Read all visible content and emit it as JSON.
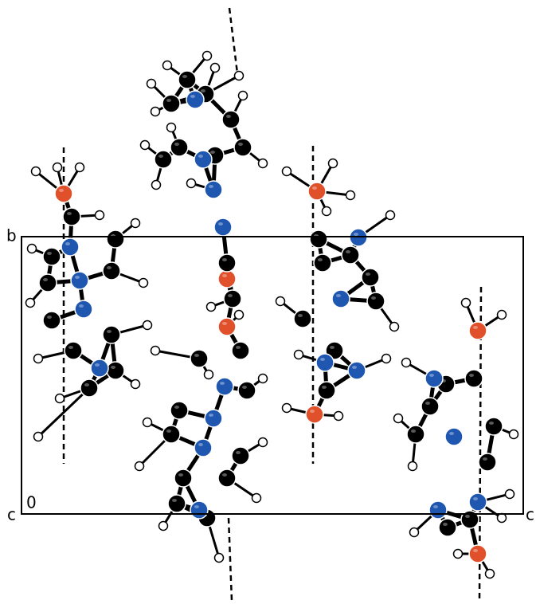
{
  "labels": {
    "b": "b",
    "c_left": "c",
    "origin": "0",
    "c_right": "c"
  }
}
